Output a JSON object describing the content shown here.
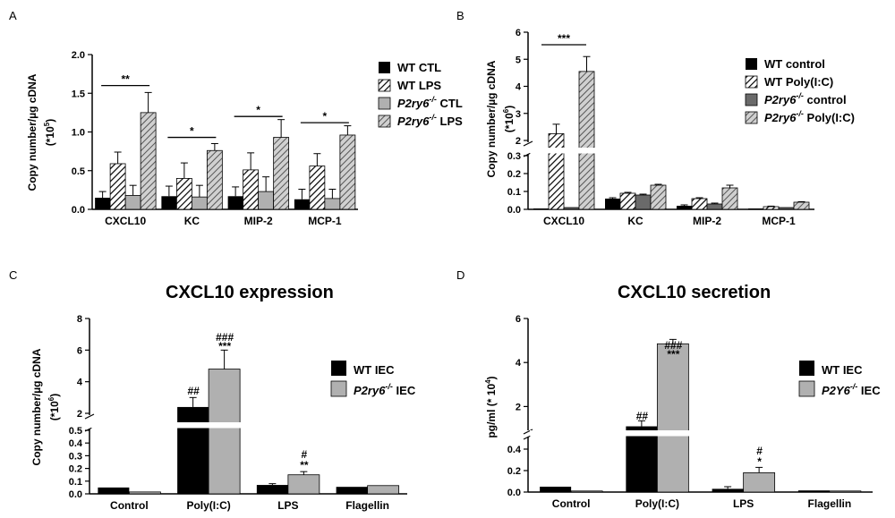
{
  "chart_data": [
    {
      "panel": "A",
      "type": "bar",
      "title": "",
      "ylabel": "Copy number/µg cDNA",
      "ylabel_unit": "(*10^5)",
      "ylim": [
        0,
        2.0
      ],
      "yticks": [
        "0.0",
        "0.5",
        "1.0",
        "1.5",
        "2.0"
      ],
      "categories": [
        "CXCL10",
        "KC",
        "MIP-2",
        "MCP-1"
      ],
      "series": [
        {
          "name": "WT CTL",
          "style": "black",
          "values": [
            0.15,
            0.17,
            0.17,
            0.13
          ],
          "errors": [
            0.08,
            0.13,
            0.12,
            0.13
          ]
        },
        {
          "name": "WT LPS",
          "style": "hatch",
          "values": [
            0.59,
            0.4,
            0.51,
            0.56
          ],
          "errors": [
            0.15,
            0.2,
            0.22,
            0.16
          ]
        },
        {
          "name": "P2ry6-/- CTL",
          "style": "gray",
          "values": [
            0.18,
            0.16,
            0.23,
            0.14
          ],
          "errors": [
            0.13,
            0.15,
            0.19,
            0.12
          ]
        },
        {
          "name": "P2ry6-/- LPS",
          "style": "grayhatch",
          "values": [
            1.25,
            0.76,
            0.93,
            0.96
          ],
          "errors": [
            0.26,
            0.09,
            0.23,
            0.12
          ]
        }
      ],
      "legend": [
        {
          "prefix": "WT CTL",
          "sup": "",
          "suffix": "",
          "italic": false
        },
        {
          "prefix": "WT LPS",
          "sup": "",
          "suffix": "",
          "italic": false
        },
        {
          "prefix": "P2ry6",
          "sup": "-/-",
          "suffix": " CTL",
          "italic": true
        },
        {
          "prefix": "P2ry6",
          "sup": "-/-",
          "suffix": " LPS",
          "italic": true
        }
      ],
      "significance": [
        "**",
        "*",
        "*",
        "*"
      ]
    },
    {
      "panel": "B",
      "type": "bar",
      "title": "",
      "ylabel": "Copy number/µg cDNA",
      "ylabel_unit": "(*10^6)",
      "broken_axis": {
        "lower": [
          0,
          0.3
        ],
        "upper": [
          2,
          6
        ]
      },
      "yticks_lower": [
        "0.0",
        "0.1",
        "0.2",
        "0.3"
      ],
      "yticks_upper": [
        "2",
        "3",
        "4",
        "5",
        "6"
      ],
      "categories": [
        "CXCL10",
        "KC",
        "MIP-2",
        "MCP-1"
      ],
      "series": [
        {
          "name": "WT control",
          "style": "black",
          "values": [
            0.005,
            0.06,
            0.02,
            0.005
          ],
          "errors": [
            0,
            0.005,
            0.005,
            0
          ]
        },
        {
          "name": "WT Poly(I:C)",
          "style": "hatch",
          "values": [
            2.25,
            0.09,
            0.06,
            0.015
          ],
          "errors": [
            0.35,
            0.005,
            0.005,
            0.003
          ]
        },
        {
          "name": "P2ry6-/- control",
          "style": "darkgray",
          "values": [
            0.01,
            0.08,
            0.03,
            0.01
          ],
          "errors": [
            0,
            0.005,
            0.005,
            0
          ]
        },
        {
          "name": "P2ry6-/- Poly(I:C)",
          "style": "grayhatch",
          "values": [
            4.55,
            0.135,
            0.12,
            0.04
          ],
          "errors": [
            0.55,
            0.005,
            0.015,
            0.003
          ]
        }
      ],
      "legend": [
        {
          "prefix": "WT control",
          "sup": "",
          "suffix": "",
          "italic": false
        },
        {
          "prefix": "WT Poly(I:C)",
          "sup": "",
          "suffix": "",
          "italic": false
        },
        {
          "prefix": "P2ry6",
          "sup": "-/-",
          "suffix": " control",
          "italic": true
        },
        {
          "prefix": "P2ry6",
          "sup": "-/-",
          "suffix": " Poly(I:C)",
          "italic": true
        }
      ],
      "significance": [
        "***"
      ]
    },
    {
      "panel": "C",
      "type": "bar",
      "title": "CXCL10 expression",
      "ylabel": "Copy number/µg cDNA",
      "ylabel_unit": "(*10^6)",
      "broken_axis": {
        "lower": [
          0,
          0.5
        ],
        "upper": [
          2,
          8
        ]
      },
      "yticks_lower": [
        "0.0",
        "0.1",
        "0.2",
        "0.3",
        "0.4",
        "0.5"
      ],
      "yticks_upper": [
        "2",
        "4",
        "6",
        "8"
      ],
      "categories": [
        "Control",
        "Poly(I:C)",
        "LPS",
        "Flagellin"
      ],
      "series": [
        {
          "name": "WT IEC",
          "style": "black",
          "values": [
            0.05,
            2.4,
            0.07,
            0.055
          ],
          "errors": [
            0,
            0.6,
            0.01,
            0
          ]
        },
        {
          "name": "P2ry6-/- IEC",
          "style": "gray",
          "values": [
            0.015,
            4.8,
            0.15,
            0.065
          ],
          "errors": [
            0,
            1.2,
            0.025,
            0
          ]
        }
      ],
      "legend": [
        {
          "prefix": "WT IEC",
          "sup": "",
          "suffix": "",
          "italic": false
        },
        {
          "prefix": "P2ry6",
          "sup": "-/-",
          "suffix": " IEC",
          "italic": true
        }
      ],
      "significance": [
        "##",
        "###",
        "***",
        "#",
        "**"
      ]
    },
    {
      "panel": "D",
      "type": "bar",
      "title": "CXCL10 secretion",
      "ylabel": "pg/ml (* 10^4)",
      "broken_axis": {
        "lower": [
          0,
          0.5
        ],
        "upper": [
          1,
          6
        ]
      },
      "yticks_lower": [
        "0.0",
        "0.2",
        "0.4"
      ],
      "yticks_upper": [
        "2",
        "4",
        "6"
      ],
      "categories": [
        "Control",
        "Poly(I:C)",
        "LPS",
        "Flagellin"
      ],
      "series": [
        {
          "name": "WT IEC",
          "style": "black",
          "values": [
            0.05,
            1.1,
            0.03,
            0.015
          ],
          "errors": [
            0,
            0.25,
            0.02,
            0
          ]
        },
        {
          "name": "P2Y6-/- IEC",
          "style": "gray",
          "values": [
            0.01,
            4.85,
            0.18,
            0.01
          ],
          "errors": [
            0,
            0.2,
            0.05,
            0
          ]
        }
      ],
      "legend": [
        {
          "prefix": "WT IEC",
          "sup": "",
          "suffix": "",
          "italic": false
        },
        {
          "prefix": "P2Y6",
          "sup": "-/-",
          "suffix": " IEC",
          "italic": true
        }
      ],
      "significance": [
        "##",
        "###",
        "***",
        "#",
        "*"
      ]
    }
  ]
}
